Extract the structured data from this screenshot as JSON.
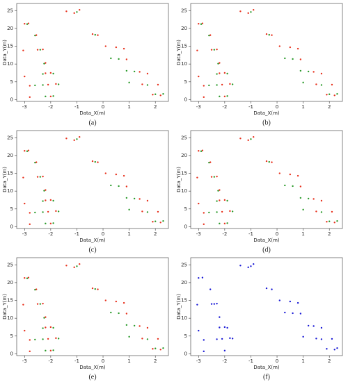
{
  "chart_data": [
    {
      "type": "scatter",
      "caption": "(a)",
      "xlabel": "Data_X(m)",
      "ylabel": "Data_Y(m)",
      "xlim": [
        -3.3,
        2.5
      ],
      "ylim": [
        -0.5,
        27
      ],
      "xticks": [
        -3,
        -2,
        -1,
        0,
        1,
        2
      ],
      "yticks": [
        0,
        5,
        10,
        15,
        20,
        25
      ],
      "series": [
        {
          "color": "#e8321e",
          "x": [
            -3.0,
            -2.85,
            -2.55,
            -3.05,
            -2.5,
            -2.3,
            -2.2,
            -3.0,
            -2.2,
            -2.0,
            -2.8,
            -2.1,
            -1.8,
            -2.8,
            -2.0,
            -1.4,
            -1.1,
            -0.9,
            -0.4,
            -0.2,
            0.1,
            0.5,
            0.8,
            0.9,
            1.4,
            1.7,
            1.5,
            2.1,
            1.9,
            2.2
          ],
          "values": [
            21.3,
            21.4,
            18.1,
            13.8,
            14.0,
            14.1,
            10.3,
            6.5,
            7.4,
            7.5,
            3.9,
            4.2,
            4.4,
            0.7,
            0.9,
            24.8,
            24.3,
            25.2,
            18.4,
            18.1,
            15.0,
            14.7,
            14.3,
            11.3,
            7.8,
            7.3,
            4.3,
            4.2,
            1.4,
            1.2
          ]
        },
        {
          "color": "#2a9a2a",
          "x": [
            -2.9,
            -2.6,
            -2.4,
            -2.25,
            -2.3,
            -1.9,
            -2.6,
            -2.3,
            -1.7,
            -2.2,
            -1.9,
            -1.0,
            -0.3,
            0.3,
            0.6,
            0.9,
            1.2,
            1.0,
            1.7,
            2.0,
            2.3
          ],
          "values": [
            21.2,
            18.0,
            14.0,
            10.1,
            7.2,
            7.3,
            4.0,
            4.1,
            4.3,
            0.9,
            1.0,
            24.6,
            18.2,
            11.6,
            11.4,
            8.1,
            7.9,
            4.8,
            4.1,
            1.5,
            1.6
          ]
        }
      ]
    },
    {
      "type": "scatter",
      "caption": "(b)",
      "xlabel": "Data_X(m)",
      "ylabel": "Data_Y(m)",
      "xlim": [
        -3.3,
        2.5
      ],
      "ylim": [
        -0.5,
        27
      ],
      "xticks": [
        -3,
        -2,
        -1,
        0,
        1,
        2
      ],
      "yticks": [
        0,
        5,
        10,
        15,
        20,
        25
      ],
      "series": [
        {
          "color": "#e8321e",
          "x": [
            -3.0,
            -2.85,
            -2.55,
            -3.05,
            -2.5,
            -2.3,
            -2.2,
            -3.0,
            -2.2,
            -2.0,
            -2.8,
            -2.1,
            -1.8,
            -2.8,
            -2.0,
            -1.4,
            -1.1,
            -0.9,
            -0.4,
            -0.2,
            0.1,
            0.5,
            0.8,
            0.9,
            1.4,
            1.7,
            1.5,
            2.1,
            1.9,
            2.2
          ],
          "values": [
            21.3,
            21.4,
            18.1,
            13.8,
            14.0,
            14.1,
            10.3,
            6.5,
            7.4,
            7.5,
            3.9,
            4.2,
            4.4,
            0.7,
            0.9,
            24.8,
            24.3,
            25.2,
            18.4,
            18.1,
            15.0,
            14.7,
            14.3,
            11.3,
            7.8,
            7.3,
            4.3,
            4.2,
            1.4,
            1.2
          ]
        },
        {
          "color": "#2a9a2a",
          "x": [
            -2.9,
            -2.6,
            -2.4,
            -2.25,
            -2.3,
            -1.9,
            -2.6,
            -2.3,
            -1.7,
            -2.2,
            -1.9,
            -1.0,
            -0.3,
            0.3,
            0.6,
            0.9,
            1.2,
            1.0,
            1.7,
            2.0,
            2.3
          ],
          "values": [
            21.2,
            18.0,
            14.0,
            10.1,
            7.2,
            7.3,
            4.0,
            4.1,
            4.3,
            0.9,
            1.0,
            24.6,
            18.2,
            11.6,
            11.4,
            8.1,
            7.9,
            4.8,
            4.1,
            1.5,
            1.6
          ]
        }
      ]
    },
    {
      "type": "scatter",
      "caption": "(c)",
      "xlabel": "Data_X(m)",
      "ylabel": "Data_Y(m)",
      "xlim": [
        -3.3,
        2.5
      ],
      "ylim": [
        -0.5,
        27
      ],
      "xticks": [
        -3,
        -2,
        -1,
        0,
        1,
        2
      ],
      "yticks": [
        0,
        5,
        10,
        15,
        20,
        25
      ],
      "series": [
        {
          "color": "#e8321e",
          "x": [
            -3.0,
            -2.85,
            -2.55,
            -3.05,
            -2.5,
            -2.3,
            -2.2,
            -3.0,
            -2.2,
            -2.0,
            -2.8,
            -2.1,
            -1.8,
            -2.8,
            -2.0,
            -1.4,
            -1.1,
            -0.9,
            -0.4,
            -0.2,
            0.1,
            0.5,
            0.8,
            0.9,
            1.4,
            1.7,
            1.5,
            2.1,
            1.9,
            2.2
          ],
          "values": [
            21.3,
            21.4,
            18.1,
            13.8,
            14.0,
            14.1,
            10.3,
            6.5,
            7.4,
            7.5,
            3.9,
            4.2,
            4.4,
            0.7,
            0.9,
            24.8,
            24.3,
            25.2,
            18.4,
            18.1,
            15.0,
            14.7,
            14.3,
            11.3,
            7.8,
            7.3,
            4.3,
            4.2,
            1.4,
            1.2
          ]
        },
        {
          "color": "#2a9a2a",
          "x": [
            -2.9,
            -2.6,
            -2.4,
            -2.25,
            -2.3,
            -1.9,
            -2.6,
            -2.3,
            -1.7,
            -2.2,
            -1.9,
            -1.0,
            -0.3,
            0.3,
            0.6,
            0.9,
            1.2,
            1.0,
            1.7,
            2.0,
            2.3
          ],
          "values": [
            21.2,
            18.0,
            14.0,
            10.1,
            7.2,
            7.3,
            4.0,
            4.1,
            4.3,
            0.9,
            1.0,
            24.6,
            18.2,
            11.6,
            11.4,
            8.1,
            7.9,
            4.8,
            4.1,
            1.5,
            1.6
          ]
        }
      ]
    },
    {
      "type": "scatter",
      "caption": "(d)",
      "xlabel": "Data_X(m)",
      "ylabel": "Data_Y(m)",
      "xlim": [
        -3.3,
        2.5
      ],
      "ylim": [
        -0.5,
        27
      ],
      "xticks": [
        -3,
        -2,
        -1,
        0,
        1,
        2
      ],
      "yticks": [
        0,
        5,
        10,
        15,
        20,
        25
      ],
      "series": [
        {
          "color": "#e8321e",
          "x": [
            -3.0,
            -2.85,
            -2.55,
            -3.05,
            -2.5,
            -2.3,
            -2.2,
            -3.0,
            -2.2,
            -2.0,
            -2.8,
            -2.1,
            -1.8,
            -2.8,
            -2.0,
            -1.4,
            -1.1,
            -0.9,
            -0.4,
            -0.2,
            0.1,
            0.5,
            0.8,
            0.9,
            1.4,
            1.7,
            1.5,
            2.1,
            1.9,
            2.2
          ],
          "values": [
            21.3,
            21.4,
            18.1,
            13.8,
            14.0,
            14.1,
            10.3,
            6.5,
            7.4,
            7.5,
            3.9,
            4.2,
            4.4,
            0.7,
            0.9,
            24.8,
            24.3,
            25.2,
            18.4,
            18.1,
            15.0,
            14.7,
            14.3,
            11.3,
            7.8,
            7.3,
            4.3,
            4.2,
            1.4,
            1.2
          ]
        },
        {
          "color": "#2a9a2a",
          "x": [
            -2.9,
            -2.6,
            -2.4,
            -2.25,
            -2.3,
            -1.9,
            -2.6,
            -2.3,
            -1.7,
            -2.2,
            -1.9,
            -1.0,
            -0.3,
            0.3,
            0.6,
            0.9,
            1.2,
            1.0,
            1.7,
            2.0,
            2.3
          ],
          "values": [
            21.2,
            18.0,
            14.0,
            10.1,
            7.2,
            7.3,
            4.0,
            4.1,
            4.3,
            0.9,
            1.0,
            24.6,
            18.2,
            11.6,
            11.4,
            8.1,
            7.9,
            4.8,
            4.1,
            1.5,
            1.6
          ]
        }
      ]
    },
    {
      "type": "scatter",
      "caption": "(e)",
      "xlabel": "Data_X(m)",
      "ylabel": "Data_Y(m)",
      "xlim": [
        -3.3,
        2.5
      ],
      "ylim": [
        -0.5,
        27
      ],
      "xticks": [
        -3,
        -2,
        -1,
        0,
        1,
        2
      ],
      "yticks": [
        0,
        5,
        10,
        15,
        20,
        25
      ],
      "series": [
        {
          "color": "#e8321e",
          "x": [
            -3.0,
            -2.85,
            -2.55,
            -3.05,
            -2.5,
            -2.3,
            -2.2,
            -3.0,
            -2.2,
            -2.0,
            -2.8,
            -2.1,
            -1.8,
            -2.8,
            -2.0,
            -1.4,
            -1.1,
            -0.9,
            -0.4,
            -0.2,
            0.1,
            0.5,
            0.8,
            0.9,
            1.4,
            1.7,
            1.5,
            2.1,
            1.9,
            2.2
          ],
          "values": [
            21.3,
            21.4,
            18.1,
            13.8,
            14.0,
            14.1,
            10.3,
            6.5,
            7.4,
            7.5,
            3.9,
            4.2,
            4.4,
            0.7,
            0.9,
            24.8,
            24.3,
            25.2,
            18.4,
            18.1,
            15.0,
            14.7,
            14.3,
            11.3,
            7.8,
            7.3,
            4.3,
            4.2,
            1.4,
            1.2
          ]
        },
        {
          "color": "#2a9a2a",
          "x": [
            -2.9,
            -2.6,
            -2.4,
            -2.25,
            -2.3,
            -1.9,
            -2.6,
            -2.3,
            -1.7,
            -2.2,
            -1.9,
            -1.0,
            -0.3,
            0.3,
            0.6,
            0.9,
            1.2,
            1.0,
            1.7,
            2.0,
            2.3
          ],
          "values": [
            21.2,
            18.0,
            14.0,
            10.1,
            7.2,
            7.3,
            4.0,
            4.1,
            4.3,
            0.9,
            1.0,
            24.6,
            18.2,
            11.6,
            11.4,
            8.1,
            7.9,
            4.8,
            4.1,
            1.5,
            1.6
          ]
        }
      ]
    },
    {
      "type": "scatter",
      "caption": "(f)",
      "xlabel": "Data_X(m)",
      "ylabel": "Data_Y(m)",
      "xlim": [
        -3.3,
        2.5
      ],
      "ylim": [
        -0.5,
        27
      ],
      "xticks": [
        -3,
        -2,
        -1,
        0,
        1,
        2
      ],
      "yticks": [
        0,
        5,
        10,
        15,
        20,
        25
      ],
      "series": [
        {
          "color": "#1a1ad6",
          "x": [
            -3.0,
            -2.85,
            -2.55,
            -3.05,
            -2.5,
            -2.3,
            -2.2,
            -3.0,
            -2.2,
            -2.0,
            -2.8,
            -2.1,
            -1.8,
            -2.8,
            -2.0,
            -1.4,
            -1.1,
            -0.9,
            -0.4,
            -0.2,
            0.1,
            0.5,
            0.8,
            0.9,
            1.4,
            1.7,
            1.5,
            2.1,
            1.9,
            2.2,
            -2.4,
            -1.9,
            -2.3,
            -1.7,
            -1.0,
            0.3,
            0.6,
            1.2,
            1.0,
            1.7,
            2.3
          ],
          "values": [
            21.3,
            21.4,
            18.1,
            13.8,
            14.0,
            14.1,
            10.3,
            6.5,
            7.4,
            7.5,
            3.9,
            4.2,
            4.4,
            0.7,
            0.9,
            24.8,
            24.3,
            25.2,
            18.4,
            18.1,
            15.0,
            14.7,
            14.3,
            11.3,
            7.8,
            7.3,
            4.3,
            4.2,
            1.4,
            1.2,
            14.0,
            7.3,
            4.1,
            4.3,
            24.6,
            11.6,
            11.4,
            7.9,
            4.8,
            4.1,
            1.6
          ]
        }
      ]
    }
  ]
}
